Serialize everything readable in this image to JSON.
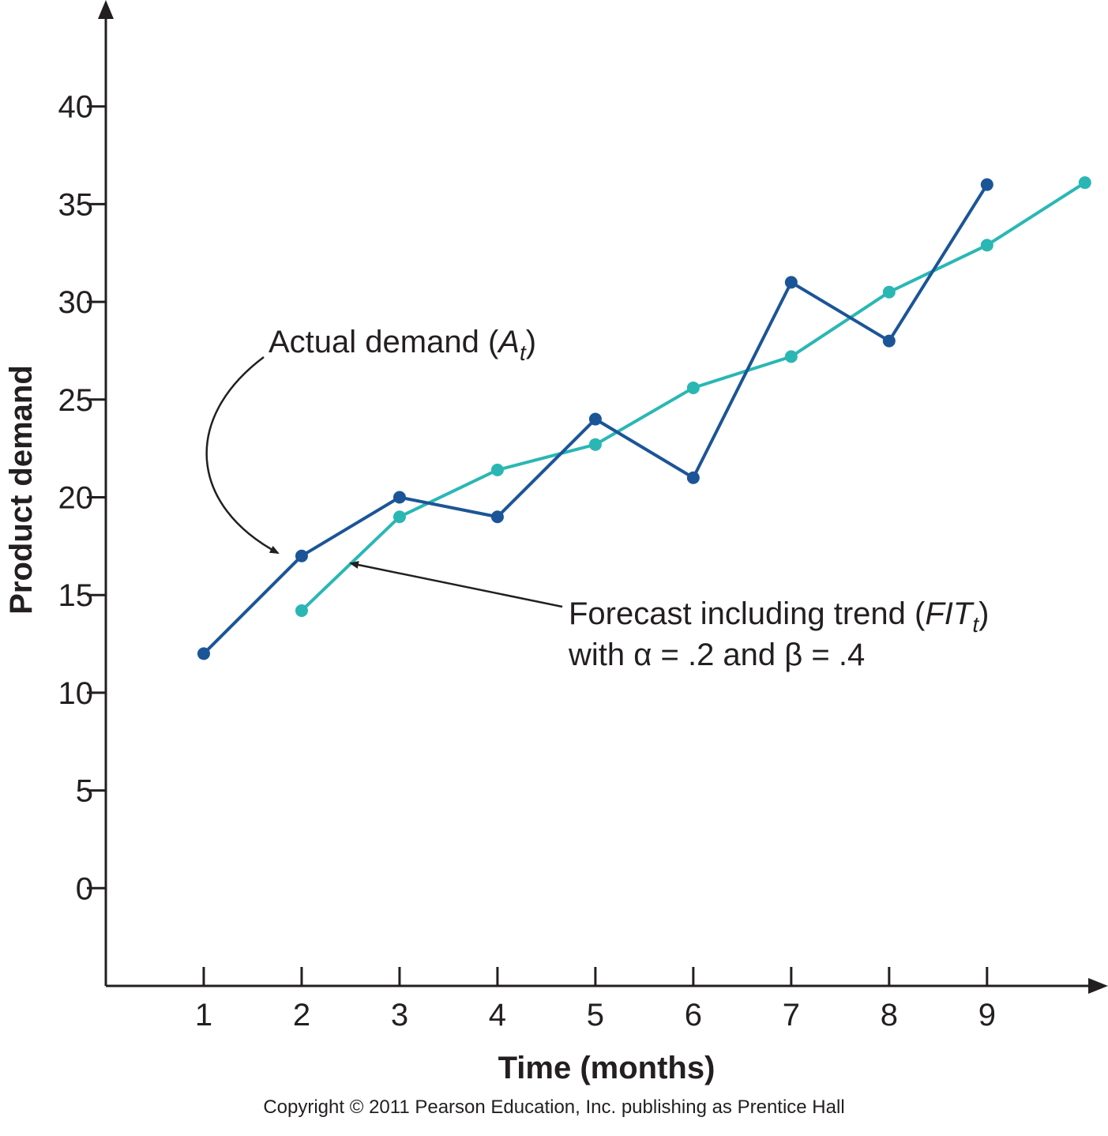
{
  "chart_data": {
    "type": "line",
    "xlabel": "Time (months)",
    "ylabel": "Product demand",
    "x_ticks": [
      1,
      2,
      3,
      4,
      5,
      6,
      7,
      8,
      9
    ],
    "y_ticks": [
      0,
      5,
      10,
      15,
      20,
      25,
      30,
      35,
      40
    ],
    "xlim": [
      0,
      10.05
    ],
    "ylim": [
      -5,
      45
    ],
    "grid": false,
    "series": [
      {
        "key": "actual",
        "color": "#1b5597",
        "x": [
          1,
          2,
          3,
          4,
          5,
          6,
          7,
          8,
          9
        ],
        "y": [
          12,
          17,
          20,
          19,
          24,
          21,
          31,
          28,
          36
        ]
      },
      {
        "key": "forecast",
        "color": "#2ab7b4",
        "x": [
          2,
          3,
          4,
          5,
          6,
          7,
          8,
          9,
          10
        ],
        "y": [
          14.2,
          19.0,
          21.4,
          22.7,
          25.6,
          27.2,
          30.5,
          32.9,
          36.1
        ]
      }
    ],
    "annotations": {
      "actual": {
        "text": "Actual demand (",
        "sym": "A",
        "sub": "t",
        "close": ")"
      },
      "forecast": {
        "line1_text": "Forecast including trend (",
        "line1_sym": "FIT",
        "line1_sub": "t",
        "line1_close": ")",
        "line2": "with α = .2 and β = .4"
      }
    }
  },
  "copyright": "Copyright © 2011 Pearson Education, Inc. publishing as Prentice Hall"
}
